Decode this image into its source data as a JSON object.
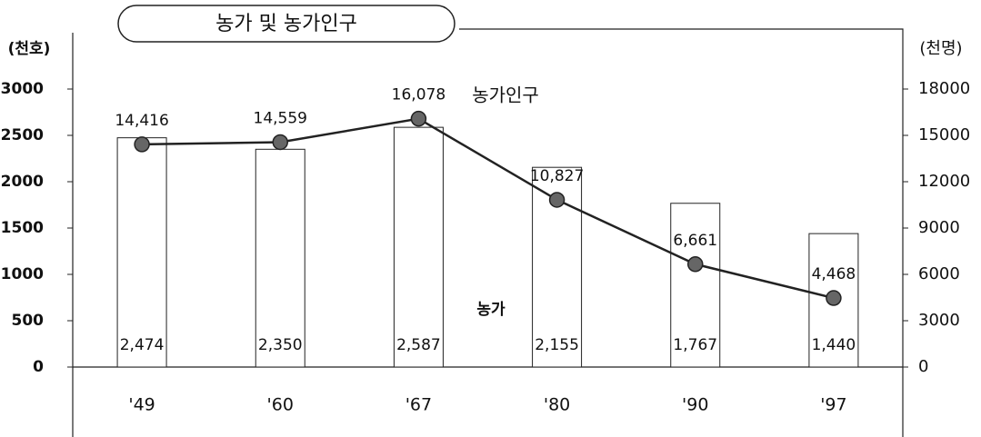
{
  "chart_data": {
    "type": "bar",
    "title": "농가 및 농가인구",
    "y_label": "(천호)",
    "y2_label": "(천명)",
    "categories": [
      "'49",
      "'60",
      "'67",
      "'80",
      "'90",
      "'97"
    ],
    "series": [
      {
        "name": "농가",
        "type": "bar",
        "color": "#ffffff",
        "values": [
          2474,
          2350,
          2587,
          2155,
          1767,
          1440
        ],
        "value_labels": [
          "2,474",
          "2,350",
          "2,587",
          "2,155",
          "1,767",
          "1,440"
        ]
      },
      {
        "name": "농가인구",
        "type": "line",
        "axis": "y2",
        "color": "#222222",
        "values": [
          14416,
          14559,
          16078,
          10827,
          6661,
          4468
        ],
        "value_labels": [
          "14,416",
          "14,559",
          "16,078",
          "10,827",
          "6,661",
          "4,468"
        ]
      }
    ],
    "ylim": [
      0,
      3000
    ],
    "yticks": [
      0,
      500,
      1000,
      1500,
      2000,
      2500,
      3000
    ],
    "y2lim": [
      0,
      18000
    ],
    "y2ticks": [
      0,
      3000,
      6000,
      9000,
      12000,
      15000,
      18000
    ]
  }
}
